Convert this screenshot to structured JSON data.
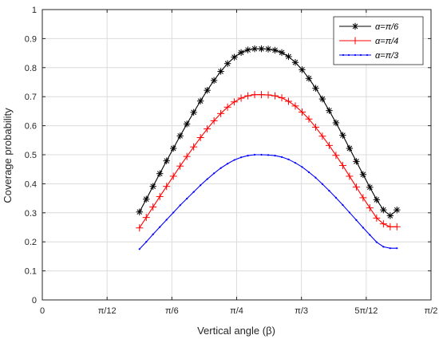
{
  "chart_data": {
    "type": "line",
    "xlabel": "Vertical angle (β)",
    "ylabel": "Coverage probability",
    "xlim": [
      0,
      1.5708
    ],
    "ylim": [
      0,
      1
    ],
    "x_ticks": [
      {
        "value": 0,
        "label": "0"
      },
      {
        "value": 0.2618,
        "label": "π/12"
      },
      {
        "value": 0.5236,
        "label": "π/6"
      },
      {
        "value": 0.7854,
        "label": "π/4"
      },
      {
        "value": 1.0472,
        "label": "π/3"
      },
      {
        "value": 1.309,
        "label": "5π/12"
      },
      {
        "value": 1.5708,
        "label": "π/2"
      }
    ],
    "y_ticks": [
      {
        "value": 0,
        "label": "0"
      },
      {
        "value": 0.1,
        "label": "0.1"
      },
      {
        "value": 0.2,
        "label": "0.2"
      },
      {
        "value": 0.3,
        "label": "0.3"
      },
      {
        "value": 0.4,
        "label": "0.4"
      },
      {
        "value": 0.5,
        "label": "0.5"
      },
      {
        "value": 0.6,
        "label": "0.6"
      },
      {
        "value": 0.7,
        "label": "0.7"
      },
      {
        "value": 0.8,
        "label": "0.8"
      },
      {
        "value": 0.9,
        "label": "0.9"
      },
      {
        "value": 1,
        "label": "1"
      }
    ],
    "grid": true,
    "legend_position": "top-right",
    "series": [
      {
        "name": "α=π/6",
        "color": "#000000",
        "marker": "asterisk",
        "x": [
          0.3927,
          0.4201,
          0.4474,
          0.4748,
          0.5022,
          0.5296,
          0.557,
          0.5843,
          0.6117,
          0.6391,
          0.6665,
          0.6939,
          0.7212,
          0.7486,
          0.776,
          0.8034,
          0.8308,
          0.8581,
          0.8855,
          0.9129,
          0.9403,
          0.9677,
          0.995,
          1.0224,
          1.0498,
          1.0772,
          1.1046,
          1.1319,
          1.1593,
          1.1867,
          1.2141,
          1.2415,
          1.2689,
          1.2962,
          1.3236,
          1.351,
          1.3784,
          1.4058,
          1.4331
        ],
        "y": [
          0.303,
          0.347,
          0.391,
          0.435,
          0.479,
          0.522,
          0.565,
          0.606,
          0.646,
          0.685,
          0.722,
          0.756,
          0.787,
          0.814,
          0.836,
          0.852,
          0.861,
          0.865,
          0.865,
          0.864,
          0.86,
          0.852,
          0.838,
          0.818,
          0.793,
          0.763,
          0.729,
          0.692,
          0.652,
          0.61,
          0.567,
          0.522,
          0.477,
          0.432,
          0.388,
          0.345,
          0.31,
          0.29,
          0.31
        ]
      },
      {
        "name": "α=π/4",
        "color": "#ff0000",
        "marker": "plus",
        "x": [
          0.3927,
          0.4201,
          0.4474,
          0.4748,
          0.5022,
          0.5296,
          0.557,
          0.5843,
          0.6117,
          0.6391,
          0.6665,
          0.6939,
          0.7212,
          0.7486,
          0.776,
          0.8034,
          0.8308,
          0.8581,
          0.8855,
          0.9129,
          0.9403,
          0.9677,
          0.995,
          1.0224,
          1.0498,
          1.0772,
          1.1046,
          1.1319,
          1.1593,
          1.1867,
          1.2141,
          1.2415,
          1.2689,
          1.2962,
          1.3236,
          1.351,
          1.3784,
          1.4058,
          1.4331
        ],
        "y": [
          0.248,
          0.284,
          0.32,
          0.356,
          0.391,
          0.426,
          0.461,
          0.494,
          0.527,
          0.559,
          0.589,
          0.617,
          0.642,
          0.664,
          0.682,
          0.695,
          0.703,
          0.707,
          0.707,
          0.706,
          0.703,
          0.696,
          0.684,
          0.668,
          0.647,
          0.623,
          0.595,
          0.564,
          0.532,
          0.498,
          0.463,
          0.426,
          0.389,
          0.352,
          0.317,
          0.282,
          0.262,
          0.252,
          0.252
        ]
      },
      {
        "name": "α=π/3",
        "color": "#0000ff",
        "marker": "dot",
        "x": [
          0.3927,
          0.4201,
          0.4474,
          0.4748,
          0.5022,
          0.5296,
          0.557,
          0.5843,
          0.6117,
          0.6391,
          0.6665,
          0.6939,
          0.7212,
          0.7486,
          0.776,
          0.8034,
          0.8308,
          0.8581,
          0.8855,
          0.9129,
          0.9403,
          0.9677,
          0.995,
          1.0224,
          1.0498,
          1.0772,
          1.1046,
          1.1319,
          1.1593,
          1.1867,
          1.2141,
          1.2415,
          1.2689,
          1.2962,
          1.3236,
          1.351,
          1.3784,
          1.4058,
          1.4331
        ],
        "y": [
          0.175,
          0.2,
          0.226,
          0.251,
          0.276,
          0.301,
          0.326,
          0.349,
          0.372,
          0.395,
          0.416,
          0.436,
          0.454,
          0.469,
          0.482,
          0.491,
          0.497,
          0.5,
          0.5,
          0.499,
          0.497,
          0.492,
          0.484,
          0.472,
          0.458,
          0.44,
          0.421,
          0.399,
          0.376,
          0.352,
          0.327,
          0.301,
          0.275,
          0.249,
          0.224,
          0.199,
          0.183,
          0.178,
          0.178
        ]
      }
    ]
  }
}
